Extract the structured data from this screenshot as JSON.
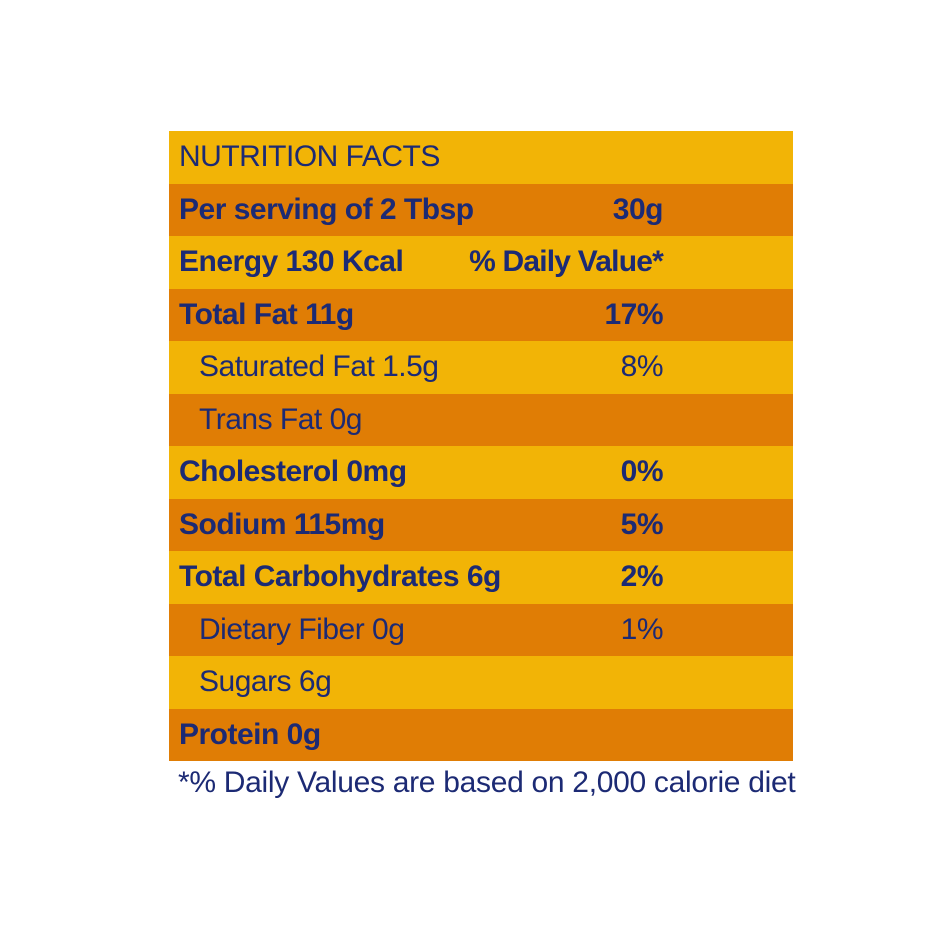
{
  "title": "NUTRITION FACTS",
  "serving": {
    "label": "Per serving of 2 Tbsp",
    "value": "30g"
  },
  "energy": {
    "label": "Energy 130 Kcal",
    "value": "% Daily Value*"
  },
  "rows": [
    {
      "label": "Total Fat 11g",
      "value": "17%"
    },
    {
      "label": "Saturated Fat 1.5g",
      "value": "8%"
    },
    {
      "label": "Trans Fat 0g",
      "value": ""
    },
    {
      "label": "Cholesterol 0mg",
      "value": "0%"
    },
    {
      "label": "Sodium 115mg",
      "value": "5%"
    },
    {
      "label": "Total Carbohydrates 6g",
      "value": "2%"
    },
    {
      "label": "Dietary Fiber 0g",
      "value": "1%"
    },
    {
      "label": "Sugars 6g",
      "value": ""
    },
    {
      "label": "Protein 0g",
      "value": ""
    }
  ],
  "footnote": "*% Daily Values are based on 2,000 calorie diet",
  "colors": {
    "stripe_light": "#f2b406",
    "stripe_dark": "#e07d05",
    "text": "#1c2a74"
  }
}
